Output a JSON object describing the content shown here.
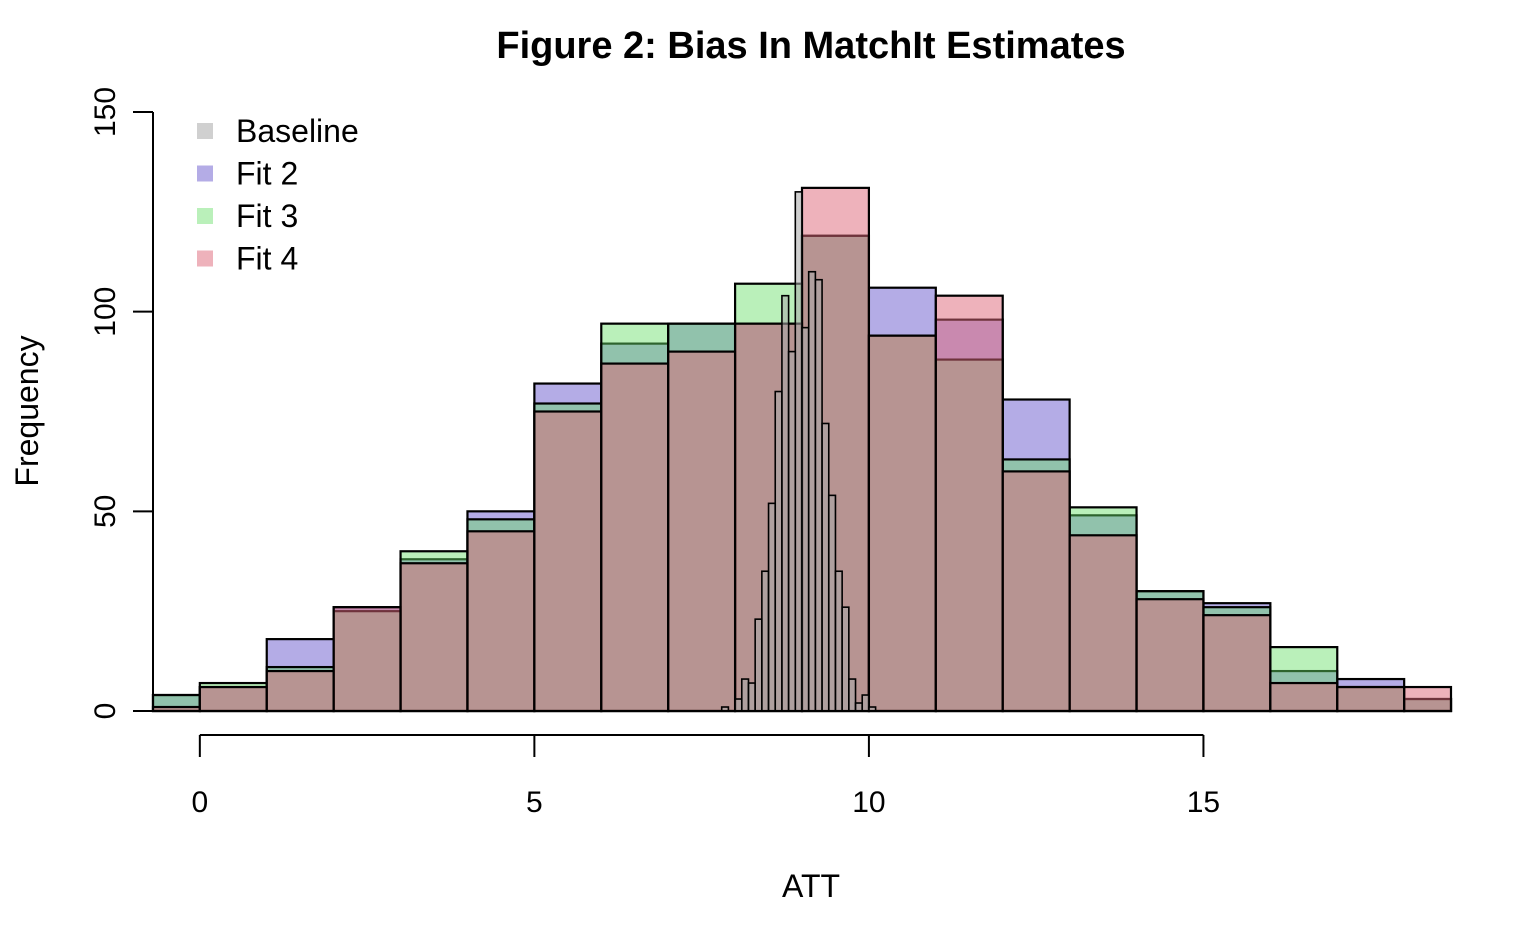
{
  "chart_data": {
    "type": "histogram",
    "title": "Figure 2: Bias In MatchIt Estimates",
    "xlabel": "ATT",
    "ylabel": "Frequency",
    "xlim": [
      -0.7,
      18.7
    ],
    "ylim": [
      0,
      150
    ],
    "x_ticks": [
      "0",
      "5",
      "10",
      "15"
    ],
    "y_ticks": [
      "0",
      "50",
      "100",
      "150"
    ],
    "legend_position": "top-left",
    "bin_edges": [
      -1,
      0,
      1,
      2,
      3,
      4,
      5,
      6,
      7,
      8,
      9,
      10,
      11,
      12,
      13,
      14,
      15,
      16,
      17,
      18,
      19
    ],
    "series": [
      {
        "name": "Fit 2",
        "color": "#6A5ACD",
        "opacity": 0.5,
        "values": [
          4,
          6,
          18,
          26,
          38,
          50,
          82,
          92,
          97,
          97,
          119,
          106,
          98,
          78,
          49,
          30,
          27,
          10,
          8,
          3
        ]
      },
      {
        "name": "Fit 3",
        "color": "#66DD66",
        "opacity": 0.45,
        "values": [
          4,
          7,
          11,
          25,
          40,
          48,
          77,
          97,
          97,
          107,
          119,
          94,
          88,
          63,
          51,
          30,
          26,
          16,
          6,
          3
        ]
      },
      {
        "name": "Fit 4",
        "color": "#DD6677",
        "opacity": 0.5,
        "values": [
          1,
          6,
          10,
          26,
          37,
          45,
          75,
          87,
          90,
          97,
          131,
          94,
          104,
          60,
          44,
          28,
          24,
          7,
          6,
          6
        ]
      }
    ],
    "baseline": {
      "name": "Baseline",
      "color": "#A9A9A9",
      "opacity": 0.55,
      "bin_edges": [
        7.8,
        7.9,
        8.0,
        8.1,
        8.2,
        8.3,
        8.4,
        8.5,
        8.6,
        8.7,
        8.8,
        8.9,
        9.0,
        9.1,
        9.2,
        9.3,
        9.4,
        9.5,
        9.6,
        9.7,
        9.8,
        9.9,
        10.0,
        10.1
      ],
      "values": [
        1,
        0,
        3,
        8,
        7,
        23,
        35,
        52,
        80,
        104,
        90,
        130,
        96,
        110,
        108,
        72,
        54,
        35,
        26,
        8,
        2,
        4,
        1
      ]
    }
  }
}
